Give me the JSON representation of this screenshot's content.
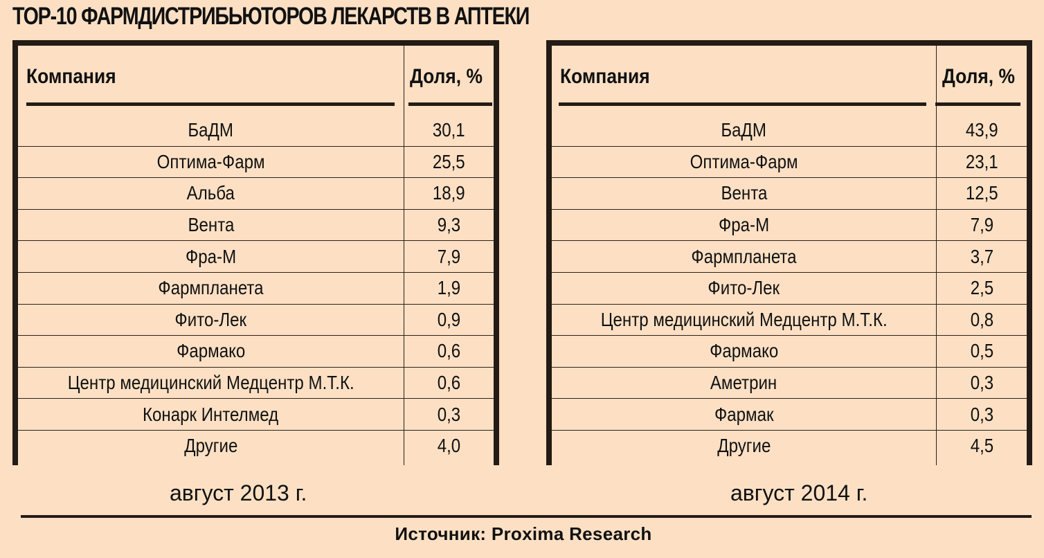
{
  "title": "ТОР-10 ФАРМДИСТРИБЬЮТОРОВ ЛЕКАРСТВ В АПТЕКИ",
  "colors": {
    "background": "#fde0c4",
    "frame": "#231b15",
    "text": "#111111"
  },
  "tables": [
    {
      "header": {
        "company": "Компания",
        "share": "Доля, %"
      },
      "rows": [
        {
          "company": "БаДМ",
          "share": "30,1"
        },
        {
          "company": "Оптима-Фарм",
          "share": "25,5"
        },
        {
          "company": "Альба",
          "share": "18,9"
        },
        {
          "company": "Вента",
          "share": "9,3"
        },
        {
          "company": "Фра-М",
          "share": "7,9"
        },
        {
          "company": "Фармпланета",
          "share": "1,9"
        },
        {
          "company": "Фито-Лек",
          "share": "0,9"
        },
        {
          "company": "Фармако",
          "share": "0,6"
        },
        {
          "company": "Центр медицинский Медцентр М.Т.К.",
          "share": "0,6"
        },
        {
          "company": "Конарк Интелмед",
          "share": "0,3"
        },
        {
          "company": "Другие",
          "share": "4,0"
        }
      ],
      "period": "август 2013 г."
    },
    {
      "header": {
        "company": "Компания",
        "share": "Доля, %"
      },
      "rows": [
        {
          "company": "БаДМ",
          "share": "43,9"
        },
        {
          "company": "Оптима-Фарм",
          "share": "23,1"
        },
        {
          "company": "Вента",
          "share": "12,5"
        },
        {
          "company": "Фра-М",
          "share": "7,9"
        },
        {
          "company": "Фармпланета",
          "share": "3,7"
        },
        {
          "company": "Фито-Лек",
          "share": "2,5"
        },
        {
          "company": "Центр медицинский Медцентр М.Т.К.",
          "share": "0,8"
        },
        {
          "company": "Фармако",
          "share": "0,5"
        },
        {
          "company": "Аметрин",
          "share": "0,3"
        },
        {
          "company": "Фармак",
          "share": "0,3"
        },
        {
          "company": "Другие",
          "share": "4,5"
        }
      ],
      "period": "август 2014 г."
    }
  ],
  "source": "Источник: Proxima Research"
}
